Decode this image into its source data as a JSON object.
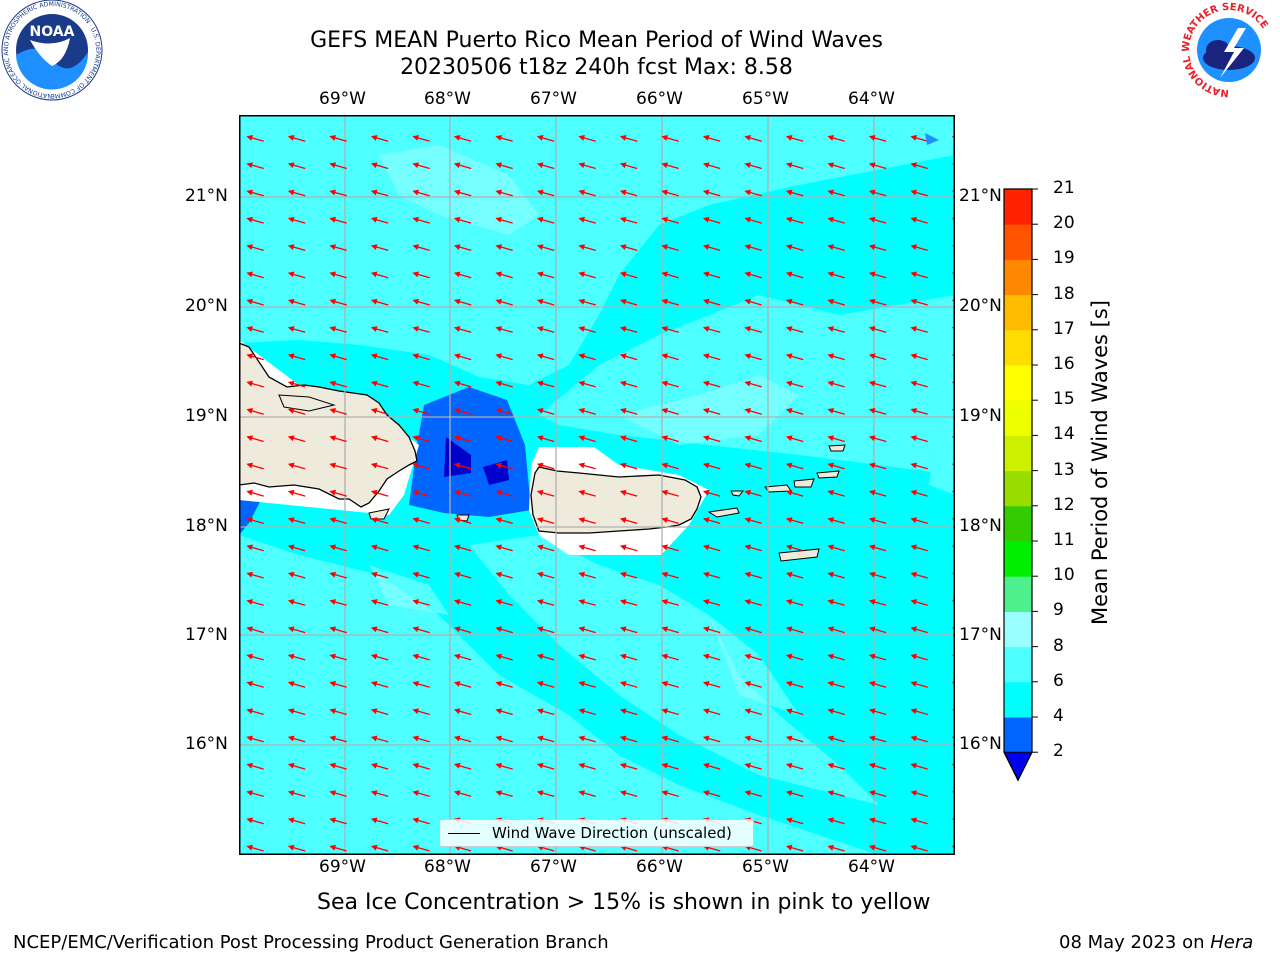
{
  "title": {
    "line1": "GEFS MEAN Puerto Rico Mean Period of Wind Waves",
    "line2": "20230506 t18z 240h fcst   Max: 8.58"
  },
  "logos": {
    "left": "NOAA",
    "left_ring": "NATIONAL OCEANIC AND ATMOSPHERIC ADMINISTRATION · U.S. DEPARTMENT OF COMMERCE",
    "right_ring": "NATIONAL WEATHER SERVICE"
  },
  "map": {
    "lon_labels": [
      "69°W",
      "68°W",
      "67°W",
      "66°W",
      "65°W",
      "64°W"
    ],
    "lat_labels": [
      "21°N",
      "20°N",
      "19°N",
      "18°N",
      "17°N",
      "16°N"
    ],
    "legend_label": "Wind Wave Direction (unscaled)",
    "ocean_color": "#00ffff",
    "mid_color": "#4dffff",
    "light_color": "#99ffff",
    "land_color": "#efebdc",
    "arrow_color": "#ff0000"
  },
  "colorbar": {
    "label": "Mean Period of Wind Waves [s]",
    "ticks": [
      "2",
      "4",
      "6",
      "8",
      "9",
      "10",
      "11",
      "12",
      "13",
      "14",
      "15",
      "16",
      "17",
      "18",
      "19",
      "20",
      "21"
    ],
    "colors": [
      "#0066ff",
      "#00ffff",
      "#4dffff",
      "#99ffff",
      "#4df08c",
      "#00ee00",
      "#33cc00",
      "#99dd00",
      "#ccf000",
      "#eeff00",
      "#ffff00",
      "#ffdd00",
      "#ffbb00",
      "#ff8800",
      "#ff5500",
      "#ff2200"
    ],
    "under_color": "#0000ee",
    "over_color": "#ff0000"
  },
  "note": "Sea Ice Concentration > 15% is shown in pink to yellow",
  "footer": {
    "left": "NCEP/EMC/Verification Post Processing Product Generation Branch",
    "right_date": "08 May 2023 on ",
    "right_host": "Hera"
  }
}
